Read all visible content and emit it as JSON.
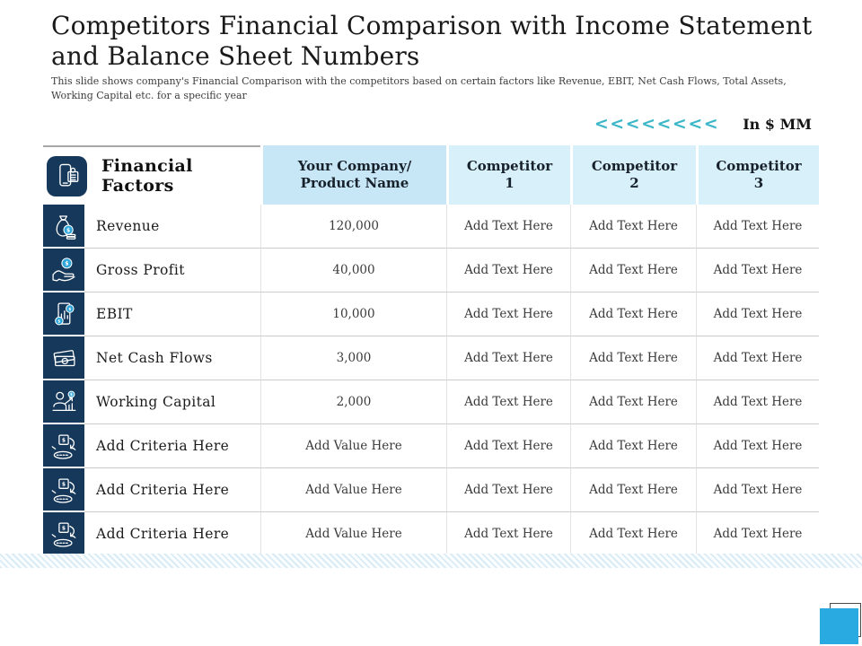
{
  "header": {
    "title": "Competitors Financial Comparison with Income Statement and Balance Sheet Numbers",
    "subtitle": "This slide shows company's Financial Comparison with the competitors based on certain factors like Revenue, EBIT, Net Cash Flows, Total Assets, Working Capital etc. for a specific year",
    "decoration": "<<<<<<<<",
    "units_label": "In $ MM"
  },
  "colors": {
    "accent_teal": "#3cb7c8",
    "navy": "#16395b",
    "header_company_bg": "#c7e6f6",
    "header_competitor_bg": "#d7f0fa",
    "corner_blue": "#29abe2"
  },
  "table": {
    "factor_header": "Financial Factors",
    "factor_header_icon": "calculator-phone-icon",
    "columns": [
      "Your Company/ Product Name",
      "Competitor 1",
      "Competitor 2",
      "Competitor 3"
    ],
    "rows": [
      {
        "icon": "money-bag-icon",
        "label": "Revenue",
        "values": [
          "120,000",
          "Add Text Here",
          "Add Text Here",
          "Add Text Here"
        ]
      },
      {
        "icon": "hand-coin-icon",
        "label": "Gross Profit",
        "values": [
          "40,000",
          "Add Text Here",
          "Add Text Here",
          "Add Text Here"
        ]
      },
      {
        "icon": "receipt-coins-icon",
        "label": "EBIT",
        "values": [
          "10,000",
          "Add Text Here",
          "Add Text Here",
          "Add Text Here"
        ]
      },
      {
        "icon": "banknotes-icon",
        "label": "Net Cash Flows",
        "values": [
          "3,000",
          "Add Text Here",
          "Add Text Here",
          "Add Text Here"
        ]
      },
      {
        "icon": "person-growth-icon",
        "label": "Working Capital",
        "values": [
          "2,000",
          "Add Text Here",
          "Add Text Here",
          "Add Text Here"
        ]
      },
      {
        "icon": "dollar-platform-icon",
        "label": "Add Criteria Here",
        "values": [
          "Add Value Here",
          "Add Text Here",
          "Add Text Here",
          "Add Text Here"
        ]
      },
      {
        "icon": "dollar-platform-icon",
        "label": "Add Criteria Here",
        "values": [
          "Add Value Here",
          "Add Text Here",
          "Add Text Here",
          "Add Text Here"
        ]
      },
      {
        "icon": "dollar-platform-icon",
        "label": "Add Criteria Here",
        "values": [
          "Add Value Here",
          "Add Text Here",
          "Add Text Here",
          "Add Text Here"
        ]
      }
    ]
  }
}
